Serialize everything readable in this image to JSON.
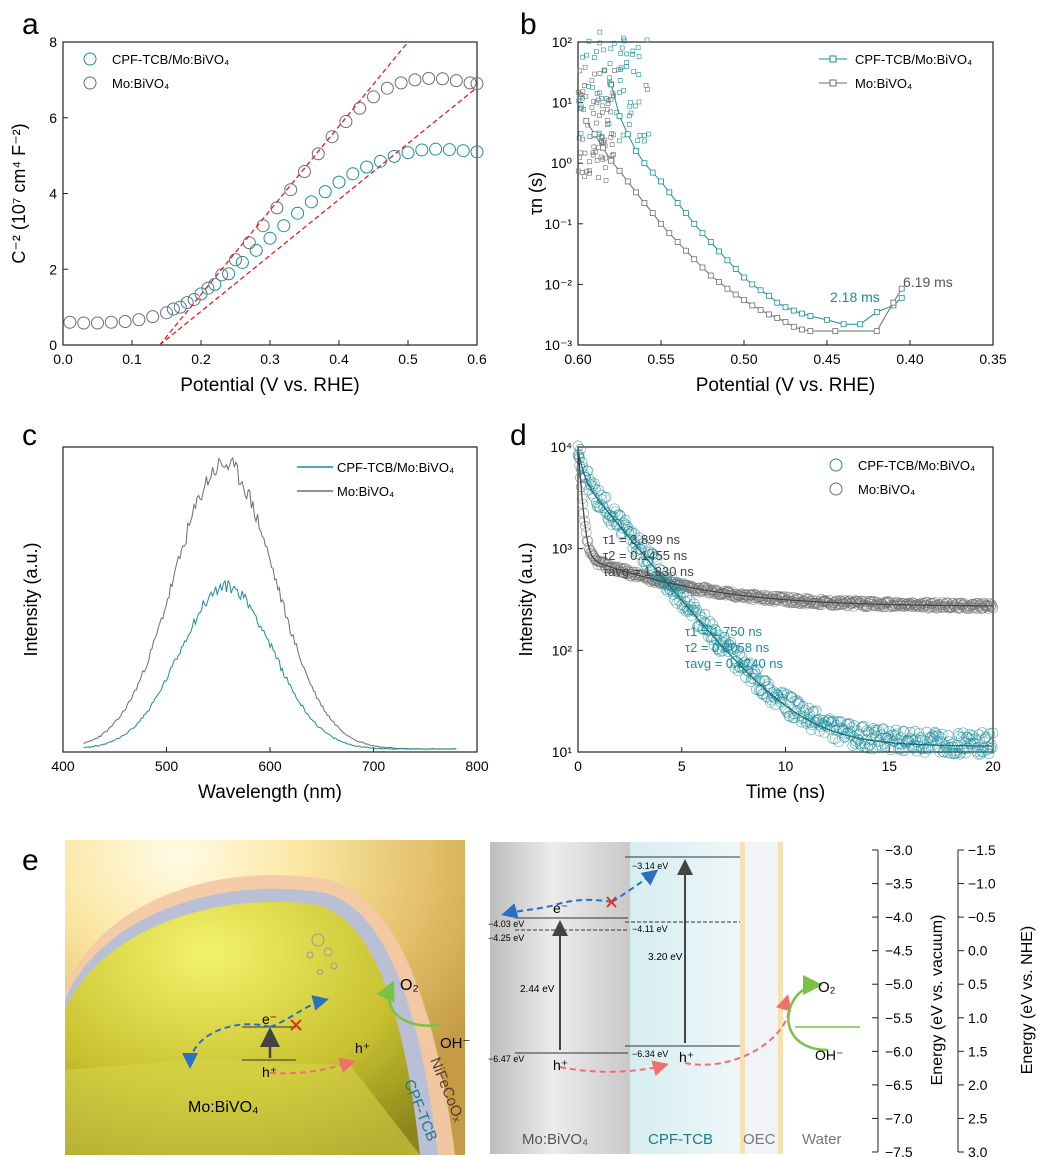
{
  "colors": {
    "teal": "#1c8d9c",
    "gray": "#6e6e6e",
    "fit": "#e02020",
    "axis": "#222222"
  },
  "chart_data": [
    {
      "panel": "a",
      "type": "scatter",
      "xlabel": "Potential (V vs. RHE)",
      "ylabel": "C⁻² (10⁷ cm⁴ F⁻²)",
      "xlim": [
        0,
        0.6
      ],
      "ylim": [
        0,
        8
      ],
      "xticks": [
        "0.0",
        "0.1",
        "0.2",
        "0.3",
        "0.4",
        "0.5",
        "0.6"
      ],
      "yticks": [
        "0",
        "2",
        "4",
        "6",
        "8"
      ],
      "legend": {
        "placement": "top-left",
        "entries": [
          "CPF-TCB/Mo:BiVO₄",
          "Mo:BiVO₄"
        ]
      },
      "series": [
        {
          "name": "CPF-TCB/Mo:BiVO₄",
          "color": "teal",
          "x": [
            0.16,
            0.18,
            0.2,
            0.22,
            0.24,
            0.26,
            0.28,
            0.3,
            0.32,
            0.34,
            0.36,
            0.38,
            0.4,
            0.42,
            0.44,
            0.46,
            0.48,
            0.5,
            0.52,
            0.54,
            0.56,
            0.58,
            0.6
          ],
          "y": [
            0.95,
            1.12,
            1.35,
            1.6,
            1.88,
            2.18,
            2.5,
            2.82,
            3.15,
            3.48,
            3.78,
            4.05,
            4.3,
            4.52,
            4.7,
            4.85,
            4.98,
            5.08,
            5.15,
            5.17,
            5.16,
            5.13,
            5.1
          ]
        },
        {
          "name": "Mo:BiVO₄",
          "color": "gray",
          "x": [
            0.01,
            0.03,
            0.05,
            0.07,
            0.09,
            0.11,
            0.13,
            0.15,
            0.17,
            0.19,
            0.21,
            0.23,
            0.25,
            0.27,
            0.29,
            0.31,
            0.33,
            0.35,
            0.37,
            0.39,
            0.41,
            0.43,
            0.45,
            0.47,
            0.49,
            0.51,
            0.53,
            0.55,
            0.57,
            0.59,
            0.6
          ],
          "y": [
            0.6,
            0.58,
            0.58,
            0.6,
            0.62,
            0.67,
            0.75,
            0.85,
            1.0,
            1.2,
            1.5,
            1.85,
            2.25,
            2.7,
            3.15,
            3.62,
            4.1,
            4.58,
            5.05,
            5.5,
            5.9,
            6.25,
            6.55,
            6.78,
            6.92,
            7.0,
            7.04,
            7.03,
            6.98,
            6.92,
            6.9
          ]
        }
      ],
      "fit_lines": [
        {
          "x": [
            0.14,
            0.5
          ],
          "y": [
            0.0,
            8.0
          ]
        },
        {
          "x": [
            0.14,
            0.6
          ],
          "y": [
            0.0,
            6.8
          ]
        }
      ]
    },
    {
      "panel": "b",
      "type": "line",
      "xlabel": "Potential (V vs. RHE)",
      "ylabel": "τn (s)",
      "ylabel_sub": "n",
      "xlim": [
        0.6,
        0.35
      ],
      "ylim": [
        0.001,
        100
      ],
      "yscale": "log",
      "xticks": [
        "0.60",
        "0.55",
        "0.50",
        "0.45",
        "0.40",
        "0.35"
      ],
      "yticks": [
        "10⁻³",
        "10⁻²",
        "10⁻¹",
        "10⁰",
        "10¹",
        "10²"
      ],
      "legend": {
        "placement": "top-right",
        "entries": [
          "CPF-TCB/Mo:BiVO₄",
          "Mo:BiVO₄"
        ]
      },
      "annotations": [
        "2.18 ms",
        "6.19 ms"
      ],
      "series": [
        {
          "name": "CPF-TCB/Mo:BiVO₄",
          "color": "teal",
          "x": [
            0.58,
            0.575,
            0.57,
            0.565,
            0.56,
            0.555,
            0.55,
            0.545,
            0.54,
            0.535,
            0.53,
            0.525,
            0.52,
            0.515,
            0.51,
            0.505,
            0.5,
            0.495,
            0.49,
            0.485,
            0.48,
            0.475,
            0.47,
            0.465,
            0.46,
            0.45,
            0.44,
            0.43,
            0.42,
            0.41,
            0.405
          ],
          "y": [
            20,
            6,
            3,
            1.6,
            1.0,
            0.7,
            0.5,
            0.33,
            0.22,
            0.15,
            0.1,
            0.07,
            0.05,
            0.035,
            0.025,
            0.018,
            0.013,
            0.01,
            0.008,
            0.0065,
            0.005,
            0.0042,
            0.0037,
            0.0033,
            0.003,
            0.0026,
            0.0022,
            0.0022,
            0.0035,
            0.0045,
            0.006
          ]
        },
        {
          "name": "Mo:BiVO₄",
          "color": "gray",
          "x": [
            0.595,
            0.59,
            0.585,
            0.58,
            0.575,
            0.57,
            0.565,
            0.56,
            0.555,
            0.55,
            0.545,
            0.54,
            0.535,
            0.53,
            0.525,
            0.52,
            0.515,
            0.51,
            0.505,
            0.5,
            0.495,
            0.49,
            0.485,
            0.48,
            0.475,
            0.47,
            0.465,
            0.46,
            0.445,
            0.42,
            0.41,
            0.405
          ],
          "y": [
            5,
            3,
            1.8,
            1.1,
            0.75,
            0.5,
            0.33,
            0.22,
            0.15,
            0.1,
            0.07,
            0.05,
            0.036,
            0.026,
            0.019,
            0.014,
            0.011,
            0.0085,
            0.0068,
            0.0055,
            0.0045,
            0.0038,
            0.0032,
            0.0028,
            0.0024,
            0.002,
            0.0018,
            0.0017,
            0.0017,
            0.0017,
            0.005,
            0.0085
          ]
        }
      ]
    },
    {
      "panel": "c",
      "type": "line",
      "xlabel": "Wavelength (nm)",
      "ylabel": "Intensity (a.u.)",
      "xlim": [
        400,
        800
      ],
      "ylim": [
        0,
        1.05
      ],
      "xticks": [
        "400",
        "500",
        "600",
        "700",
        "800"
      ],
      "legend": {
        "placement": "top-right",
        "entries": [
          "CPF-TCB/Mo:BiVO₄",
          "Mo:BiVO₄"
        ]
      },
      "series": [
        {
          "name": "CPF-TCB/Mo:BiVO₄",
          "color": "teal",
          "peak_nm": 558,
          "width_nm": 48,
          "amplitude": 0.56
        },
        {
          "name": "Mo:BiVO₄",
          "color": "gray",
          "peak_nm": 556,
          "width_nm": 52,
          "amplitude": 0.98
        }
      ]
    },
    {
      "panel": "d",
      "type": "scatter",
      "xlabel": "Time (ns)",
      "ylabel": "Intensity (a.u.)",
      "xlim": [
        0,
        20
      ],
      "ylim": [
        10,
        10000
      ],
      "yscale": "log",
      "xticks": [
        "0",
        "5",
        "10",
        "15",
        "20"
      ],
      "yticks": [
        "10¹",
        "10²",
        "10³",
        "10⁴"
      ],
      "legend": {
        "placement": "top-right",
        "entries": [
          "CPF-TCB/Mo:BiVO₄",
          "Mo:BiVO₄"
        ]
      },
      "series": [
        {
          "name": "Mo:BiVO₄",
          "color": "gray",
          "tau1": 3.899,
          "tau2": 0.1455,
          "tau_avg": 1.83,
          "baseline": 270,
          "labels": [
            "τ1 = 3.899 ns",
            "τ2 = 0.1455 ns",
            "τavg = 1.830 ns"
          ]
        },
        {
          "name": "CPF-TCB/Mo:BiVO₄",
          "color": "teal",
          "tau1": 1.75,
          "tau2": 0.2058,
          "tau_avg": 0.674,
          "baseline": 12,
          "labels": [
            "τ1 = 1.750 ns",
            "τ2 = 0.2058 ns",
            "τavg = 0.6740 ns"
          ]
        }
      ]
    }
  ],
  "panel_e": {
    "labels": {
      "mo": "Mo:BiVO₄",
      "electron": "e⁻",
      "hole": "h⁺",
      "o2": "O₂",
      "oh": "OH⁻",
      "nife": "NiFeCoOₓ",
      "cpf": "CPF-TCB"
    },
    "diagram": {
      "levels": [
        "−3.14 eV",
        "−4.03 eV",
        "−4.25 eV",
        "−4.11 eV",
        "−6.47 eV",
        "−6.34 eV"
      ],
      "gaps": [
        "2.44 eV",
        "3.20 eV"
      ],
      "bottom": [
        "Mo:BiVO₄",
        "CPF-TCB",
        "OEC",
        "Water"
      ],
      "electron": "e⁻",
      "hole": "h⁺",
      "hole2": "h⁺",
      "o2": "O₂",
      "oh": "OH⁻"
    },
    "axes": {
      "vac_label": "Energy (eV vs. vacuum)",
      "nhe_label": "Energy (eV vs. NHE)",
      "vac_ticks": [
        "−3.0",
        "−3.5",
        "−4.0",
        "−4.5",
        "−5.0",
        "−5.5",
        "−6.0",
        "−6.5",
        "−7.0",
        "−7.5"
      ],
      "nhe_ticks": [
        "−1.5",
        "−1.0",
        "−0.5",
        "0.0",
        "0.5",
        "1.0",
        "1.5",
        "2.0",
        "2.5",
        "3.0"
      ]
    }
  },
  "panel_letters": [
    "a",
    "b",
    "c",
    "d",
    "e"
  ]
}
